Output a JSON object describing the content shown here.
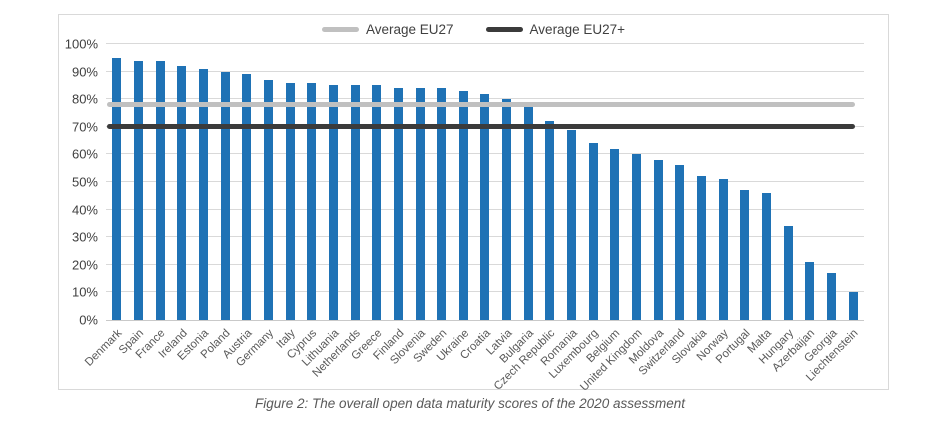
{
  "caption": "Figure 2: The overall open data maturity scores of the 2020 assessment",
  "chart_data": {
    "type": "bar",
    "title": "",
    "xlabel": "",
    "ylabel": "",
    "categories": [
      "Denmark",
      "Spain",
      "France",
      "Ireland",
      "Estonia",
      "Poland",
      "Austria",
      "Germany",
      "Italy",
      "Cyprus",
      "Lithuania",
      "Netherlands",
      "Greece",
      "Finland",
      "Slovenia",
      "Sweden",
      "Ukraine",
      "Croatia",
      "Latvia",
      "Bulgaria",
      "Czech Republic",
      "Romania",
      "Luxembourg",
      "Belgium",
      "United Kingdom",
      "Moldova",
      "Switzerland",
      "Slovakia",
      "Norway",
      "Portugal",
      "Malta",
      "Hungary",
      "Azerbaijan",
      "Georgia",
      "Liechtenstein"
    ],
    "values": [
      95,
      94,
      94,
      92,
      91,
      90,
      89,
      87,
      86,
      86,
      85,
      85,
      85,
      84,
      84,
      84,
      83,
      82,
      80,
      77,
      72,
      69,
      64,
      62,
      60,
      58,
      56,
      52,
      51,
      47,
      46,
      34,
      21,
      17,
      10
    ],
    "value_unit": "%",
    "ylim": [
      0,
      100
    ],
    "yticks": [
      0,
      10,
      20,
      30,
      40,
      50,
      60,
      70,
      80,
      90,
      100
    ],
    "ytick_suffix": "%",
    "grid": true,
    "bar_color": "#1f72b5",
    "legend_position": "top-center",
    "reference_lines": [
      {
        "label": "Average EU27",
        "value": 78,
        "color": "#c0c0c0"
      },
      {
        "label": "Average EU27+",
        "value": 70,
        "color": "#3b3b3b"
      }
    ]
  },
  "colors": {
    "bar": "#1f72b5",
    "avg_eu27_line": "#c0c0c0",
    "avg_eu27plus_line": "#3b3b3b",
    "gridline": "#d9d9d9",
    "axis_text": "#404040",
    "category_text": "#595959",
    "caption_text": "#595959",
    "frame_border": "#d9d9d9"
  }
}
